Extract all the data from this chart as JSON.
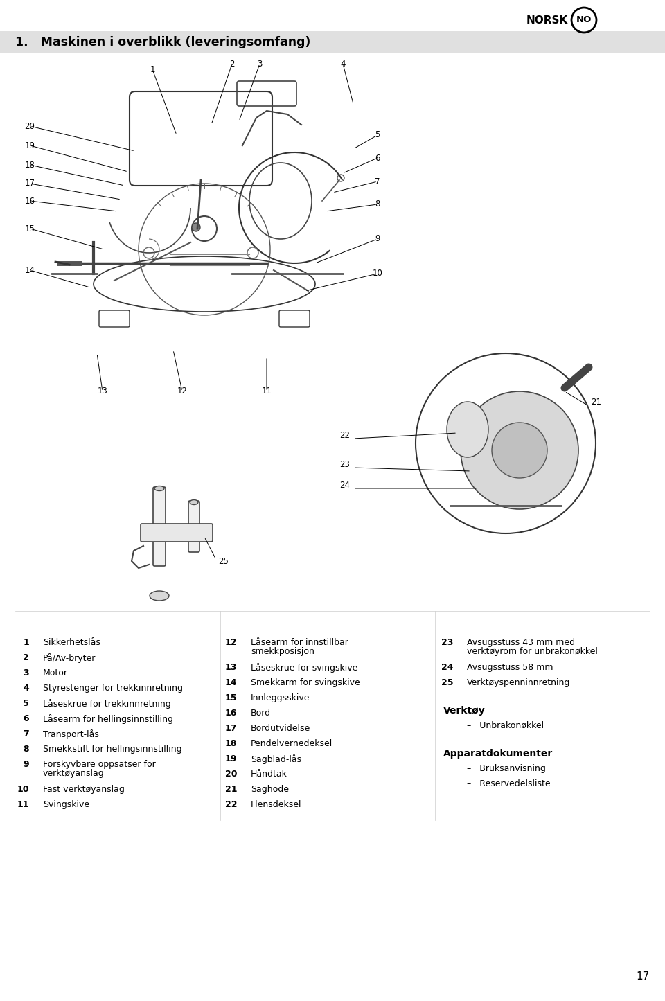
{
  "page_bg": "#ffffff",
  "header_bg": "#e0e0e0",
  "header_text": "1.   Maskinen i overblikk (leveringsomfang)",
  "header_fontsize": 12.5,
  "norsk_text": "NORSK",
  "page_number": "17",
  "col1_items": [
    [
      "1",
      "Sikkerhetslås"
    ],
    [
      "2",
      "På/Av-bryter"
    ],
    [
      "3",
      "Motor"
    ],
    [
      "4",
      "Styrestenger for trekkinnretning"
    ],
    [
      "5",
      "Låseskrue for trekkinnretning"
    ],
    [
      "6",
      "Låsearm for hellingsinnstilling"
    ],
    [
      "7",
      "Transport-lås"
    ],
    [
      "8",
      "Smekkstift for hellingsinnstilling"
    ],
    [
      "9",
      "Forskyvbare oppsatser for\nverktøyanslag"
    ],
    [
      "10",
      "Fast verktøyanslag"
    ],
    [
      "11",
      "Svingskive"
    ]
  ],
  "col2_items": [
    [
      "12",
      "Låsearm for innstillbar\nsmekkposisjon"
    ],
    [
      "13",
      "Låseskrue for svingskive"
    ],
    [
      "14",
      "Smekkarm for svingskive"
    ],
    [
      "15",
      "Innleggsskive"
    ],
    [
      "16",
      "Bord"
    ],
    [
      "17",
      "Bordutvidelse"
    ],
    [
      "18",
      "Pendelvernedeksel"
    ],
    [
      "19",
      "Sagblad-lås"
    ],
    [
      "20",
      "Håndtak"
    ],
    [
      "21",
      "Saghode"
    ],
    [
      "22",
      "Flensdeksel"
    ]
  ],
  "col3_items": [
    [
      "23",
      "Avsugsstuss 43 mm med\nverktøyrom for unbrakonøkkel"
    ],
    [
      "24",
      "Avsugsstuss 58 mm"
    ],
    [
      "25",
      "Verktøyspenninnretning"
    ]
  ],
  "tools_header": "Verktøy",
  "tools_items": [
    "–   Unbrakonøkkel"
  ],
  "docs_header": "Apparatdokumenter",
  "docs_items": [
    "–   Bruksanvisning",
    "–   Reservedelsliste"
  ],
  "num_fontsize": 9,
  "text_fontsize": 9,
  "bold_fontsize": 9.5
}
